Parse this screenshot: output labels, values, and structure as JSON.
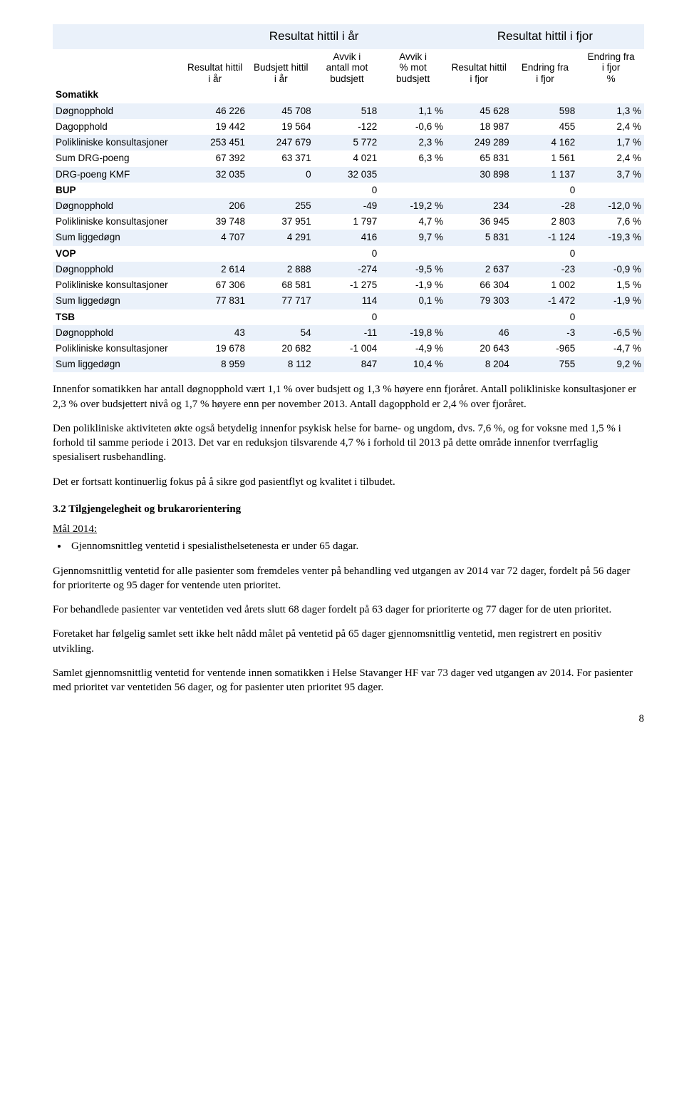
{
  "table": {
    "group_headers": [
      "Resultat hittil i år",
      "Resultat hittil i fjor"
    ],
    "column_headers": [
      "",
      "Resultat hittil i år",
      "Budsjett hittil i år",
      "Avvik i antall mot budsjett",
      "Avvik i % mot budsjett",
      "Resultat hittil i fjor",
      "Endring fra i fjor",
      "Endring fra i fjor  %"
    ],
    "rows": [
      {
        "shade": false,
        "section": true,
        "label": "Somatikk",
        "cells": [
          "",
          "",
          "",
          "",
          "",
          "",
          ""
        ]
      },
      {
        "shade": true,
        "section": false,
        "label": "Døgnopphold",
        "cells": [
          "46 226",
          "45 708",
          "518",
          "1,1 %",
          "45 628",
          "598",
          "1,3 %"
        ]
      },
      {
        "shade": false,
        "section": false,
        "label": "Dagopphold",
        "cells": [
          "19 442",
          "19 564",
          "-122",
          "-0,6 %",
          "18 987",
          "455",
          "2,4 %"
        ]
      },
      {
        "shade": true,
        "section": false,
        "label": "Polikliniske konsultasjoner",
        "cells": [
          "253 451",
          "247 679",
          "5 772",
          "2,3 %",
          "249 289",
          "4 162",
          "1,7 %"
        ]
      },
      {
        "shade": false,
        "section": false,
        "label": "Sum DRG-poeng",
        "cells": [
          "67 392",
          "63 371",
          "4 021",
          "6,3 %",
          "65 831",
          "1 561",
          "2,4 %"
        ]
      },
      {
        "shade": true,
        "section": false,
        "label": "DRG-poeng KMF",
        "cells": [
          "32 035",
          "0",
          "32 035",
          "",
          "30 898",
          "1 137",
          "3,7 %"
        ]
      },
      {
        "shade": false,
        "section": true,
        "label": "BUP",
        "cells": [
          "",
          "",
          "0",
          "",
          "",
          "0",
          ""
        ]
      },
      {
        "shade": true,
        "section": false,
        "label": "Døgnopphold",
        "cells": [
          "206",
          "255",
          "-49",
          "-19,2 %",
          "234",
          "-28",
          "-12,0 %"
        ]
      },
      {
        "shade": false,
        "section": false,
        "label": "Polikliniske konsultasjoner",
        "cells": [
          "39 748",
          "37 951",
          "1 797",
          "4,7 %",
          "36 945",
          "2 803",
          "7,6 %"
        ]
      },
      {
        "shade": true,
        "section": false,
        "label": "Sum liggedøgn",
        "cells": [
          "4 707",
          "4 291",
          "416",
          "9,7 %",
          "5 831",
          "-1 124",
          "-19,3 %"
        ]
      },
      {
        "shade": false,
        "section": true,
        "label": "VOP",
        "cells": [
          "",
          "",
          "0",
          "",
          "",
          "0",
          ""
        ]
      },
      {
        "shade": true,
        "section": false,
        "label": "Døgnopphold",
        "cells": [
          "2 614",
          "2 888",
          "-274",
          "-9,5 %",
          "2 637",
          "-23",
          "-0,9 %"
        ]
      },
      {
        "shade": false,
        "section": false,
        "label": "Polikliniske konsultasjoner",
        "cells": [
          "67 306",
          "68 581",
          "-1 275",
          "-1,9 %",
          "66 304",
          "1 002",
          "1,5 %"
        ]
      },
      {
        "shade": true,
        "section": false,
        "label": "Sum liggedøgn",
        "cells": [
          "77 831",
          "77 717",
          "114",
          "0,1 %",
          "79 303",
          "-1 472",
          "-1,9 %"
        ]
      },
      {
        "shade": false,
        "section": true,
        "label": "TSB",
        "cells": [
          "",
          "",
          "0",
          "",
          "",
          "0",
          ""
        ]
      },
      {
        "shade": true,
        "section": false,
        "label": "Døgnopphold",
        "cells": [
          "43",
          "54",
          "-11",
          "-19,8 %",
          "46",
          "-3",
          "-6,5 %"
        ]
      },
      {
        "shade": false,
        "section": false,
        "label": "Polikliniske konsultasjoner",
        "cells": [
          "19 678",
          "20 682",
          "-1 004",
          "-4,9 %",
          "20 643",
          "-965",
          "-4,7 %"
        ]
      },
      {
        "shade": true,
        "section": false,
        "label": "Sum liggedøgn",
        "cells": [
          "8 959",
          "8 112",
          "847",
          "10,4 %",
          "8 204",
          "755",
          "9,2 %"
        ]
      }
    ],
    "colors": {
      "shade": "#eaf1fa",
      "text": "#000000",
      "background": "#ffffff"
    }
  },
  "paragraphs": {
    "p1": "Innenfor somatikken har antall døgnopphold vært 1,1 % over budsjett og 1,3 % høyere enn fjoråret. Antall polikliniske konsultasjoner er 2,3 % over budsjettert nivå og 1,7 % høyere enn per november 2013. Antall dagopphold er 2,4 % over fjoråret.",
    "p2": "Den polikliniske aktiviteten økte også betydelig innenfor psykisk helse for barne- og ungdom, dvs. 7,6 %, og for voksne med 1,5 % i forhold til samme periode i 2013. Det var en reduksjon tilsvarende 4,7 % i forhold til 2013 på dette område innenfor tverrfaglig spesialisert rusbehandling.",
    "p3": "Det er fortsatt kontinuerlig fokus på å sikre god pasientflyt og kvalitet i tilbudet.",
    "heading": "3.2 Tilgjengelegheit og brukarorientering",
    "goal_label": "Mål 2014:",
    "goal_bullet": "Gjennomsnittleg ventetid i spesialisthelsetenesta er under 65 dagar.",
    "p4": "Gjennomsnittlig ventetid for alle pasienter som fremdeles venter på behandling ved utgangen av 2014 var 72 dager, fordelt på 56 dager for prioriterte og 95 dager for ventende uten prioritet.",
    "p5": "For behandlede pasienter var ventetiden ved årets slutt 68 dager fordelt på 63 dager for prioriterte og 77 dager for de uten prioritet.",
    "p6": "Foretaket har følgelig samlet sett ikke helt nådd målet på ventetid på 65 dager gjennomsnittlig ventetid, men registrert en positiv utvikling.",
    "p7": "Samlet gjennomsnittlig ventetid for ventende innen somatikken i Helse Stavanger HF var 73 dager ved utgangen av 2014. For pasienter med prioritet var ventetiden 56 dager, og for pasienter uten prioritet 95 dager."
  },
  "page_number": "8"
}
